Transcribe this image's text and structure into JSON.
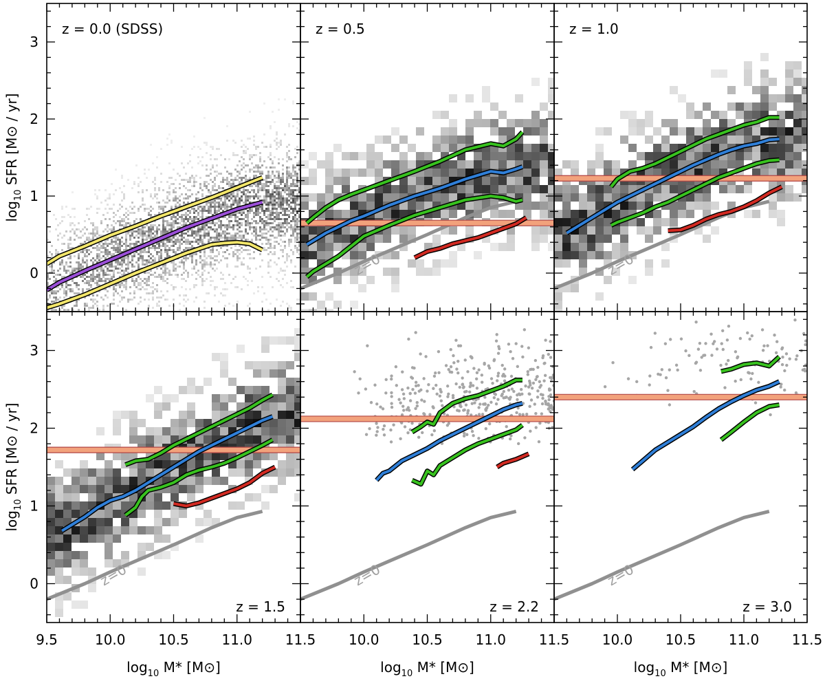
{
  "chart_data": {
    "type": "line",
    "layout": "2x3 grid, shared axes",
    "xlabel": "log10 M* [M⊙]",
    "ylabel": "log10 SFR [M⊙ / yr]",
    "xlim": [
      9.5,
      11.5
    ],
    "ylim": [
      -0.5,
      3.5
    ],
    "x_ticks": [
      9.5,
      10.0,
      10.5,
      11.0,
      11.5
    ],
    "x_tick_labels": [
      "9.5",
      "10.0",
      "10.5",
      "11.0",
      "11.5"
    ],
    "y_ticks": [
      0,
      1,
      2,
      3
    ],
    "y_tick_labels": [
      "0",
      "1",
      "2",
      "3"
    ],
    "z0_reference": {
      "label": "z=0",
      "x": [
        9.5,
        9.8,
        10.0,
        10.2,
        10.5,
        10.8,
        11.0,
        11.2
      ],
      "y": [
        -0.2,
        0.0,
        0.15,
        0.29,
        0.5,
        0.72,
        0.85,
        0.93
      ]
    },
    "panels": [
      {
        "label": "z = 0.0 (SDSS)",
        "label_position": "top-left",
        "background": "pixel density (dense)",
        "threshold": null,
        "series": [
          {
            "name": "upper",
            "color": "#f2e66b",
            "x": [
              9.5,
              9.6,
              9.8,
              10.0,
              10.2,
              10.4,
              10.6,
              10.8,
              11.0,
              11.2
            ],
            "y": [
              0.12,
              0.22,
              0.35,
              0.49,
              0.61,
              0.74,
              0.86,
              0.98,
              1.11,
              1.24
            ]
          },
          {
            "name": "median",
            "color": "#9b4fd8",
            "x": [
              9.5,
              9.6,
              9.8,
              10.0,
              10.2,
              10.4,
              10.6,
              10.8,
              11.0,
              11.2
            ],
            "y": [
              -0.22,
              -0.12,
              0.03,
              0.17,
              0.31,
              0.45,
              0.59,
              0.71,
              0.83,
              0.92
            ]
          },
          {
            "name": "lower",
            "color": "#f2e66b",
            "x": [
              9.5,
              9.6,
              9.8,
              10.0,
              10.2,
              10.4,
              10.6,
              10.8,
              10.9,
              11.0,
              11.1,
              11.2
            ],
            "y": [
              -0.45,
              -0.4,
              -0.28,
              -0.14,
              0.0,
              0.13,
              0.26,
              0.37,
              0.39,
              0.4,
              0.38,
              0.3
            ]
          }
        ]
      },
      {
        "label": "z = 0.5",
        "label_position": "top-left",
        "background": "density histogram",
        "threshold": 0.65,
        "series": [
          {
            "name": "upper",
            "color": "#38c21f",
            "x": [
              9.55,
              9.6,
              9.7,
              9.8,
              9.9,
              10.0,
              10.2,
              10.4,
              10.6,
              10.8,
              11.0,
              11.1,
              11.2,
              11.25
            ],
            "y": [
              0.65,
              0.72,
              0.85,
              0.95,
              1.02,
              1.08,
              1.2,
              1.32,
              1.45,
              1.6,
              1.68,
              1.65,
              1.74,
              1.83
            ]
          },
          {
            "name": "median",
            "color": "#2f7fd8",
            "x": [
              9.55,
              9.6,
              9.7,
              9.8,
              9.9,
              10.0,
              10.2,
              10.4,
              10.6,
              10.8,
              11.0,
              11.1,
              11.2,
              11.25
            ],
            "y": [
              0.37,
              0.42,
              0.52,
              0.6,
              0.68,
              0.74,
              0.88,
              1.0,
              1.1,
              1.22,
              1.32,
              1.3,
              1.35,
              1.38
            ]
          },
          {
            "name": "lower",
            "color": "#38c21f",
            "x": [
              9.55,
              9.6,
              9.7,
              9.8,
              9.9,
              10.0,
              10.2,
              10.4,
              10.6,
              10.8,
              11.0,
              11.1,
              11.2,
              11.25
            ],
            "y": [
              -0.05,
              0.02,
              0.12,
              0.22,
              0.35,
              0.48,
              0.62,
              0.75,
              0.85,
              0.95,
              1.0,
              0.98,
              0.93,
              0.95
            ]
          },
          {
            "name": "quiescent",
            "color": "#d22a22",
            "x": [
              10.4,
              10.5,
              10.6,
              10.7,
              10.8,
              10.9,
              11.0,
              11.1,
              11.2,
              11.28
            ],
            "y": [
              0.2,
              0.28,
              0.32,
              0.38,
              0.42,
              0.46,
              0.52,
              0.58,
              0.64,
              0.72
            ]
          }
        ]
      },
      {
        "label": "z = 1.0",
        "label_position": "top-left",
        "background": "density histogram",
        "threshold": 1.23,
        "series": [
          {
            "name": "upper",
            "color": "#38c21f",
            "x": [
              9.95,
              10.0,
              10.1,
              10.2,
              10.3,
              10.4,
              10.5,
              10.6,
              10.7,
              10.8,
              10.9,
              11.0,
              11.1,
              11.2,
              11.28
            ],
            "y": [
              1.12,
              1.22,
              1.32,
              1.36,
              1.42,
              1.5,
              1.58,
              1.66,
              1.74,
              1.8,
              1.86,
              1.92,
              1.96,
              2.02,
              2.02
            ]
          },
          {
            "name": "median",
            "color": "#2f7fd8",
            "x": [
              9.6,
              9.7,
              9.8,
              9.9,
              10.0,
              10.1,
              10.2,
              10.3,
              10.4,
              10.5,
              10.6,
              10.7,
              10.8,
              10.9,
              11.0,
              11.1,
              11.2,
              11.28
            ],
            "y": [
              0.52,
              0.62,
              0.72,
              0.82,
              0.92,
              1.0,
              1.08,
              1.16,
              1.24,
              1.32,
              1.4,
              1.47,
              1.54,
              1.6,
              1.65,
              1.68,
              1.73,
              1.74
            ]
          },
          {
            "name": "lower",
            "color": "#38c21f",
            "x": [
              9.95,
              10.0,
              10.1,
              10.2,
              10.3,
              10.4,
              10.5,
              10.6,
              10.7,
              10.8,
              10.9,
              11.0,
              11.1,
              11.2,
              11.28
            ],
            "y": [
              0.62,
              0.66,
              0.72,
              0.78,
              0.86,
              0.92,
              1.0,
              1.08,
              1.16,
              1.24,
              1.3,
              1.36,
              1.42,
              1.46,
              1.47
            ]
          },
          {
            "name": "quiescent",
            "color": "#d22a22",
            "x": [
              10.4,
              10.5,
              10.6,
              10.7,
              10.8,
              10.9,
              11.0,
              11.1,
              11.2,
              11.3
            ],
            "y": [
              0.55,
              0.56,
              0.62,
              0.7,
              0.76,
              0.8,
              0.86,
              0.94,
              1.04,
              1.12
            ]
          }
        ]
      },
      {
        "label": "z = 1.5",
        "label_position": "bottom-right",
        "background": "density histogram",
        "threshold": 1.72,
        "series": [
          {
            "name": "upper",
            "color": "#38c21f",
            "x": [
              10.12,
              10.2,
              10.3,
              10.4,
              10.5,
              10.6,
              10.7,
              10.8,
              10.9,
              11.0,
              11.1,
              11.2,
              11.28
            ],
            "y": [
              1.53,
              1.58,
              1.6,
              1.68,
              1.78,
              1.86,
              1.94,
              2.02,
              2.1,
              2.18,
              2.26,
              2.36,
              2.43
            ]
          },
          {
            "name": "median",
            "color": "#2f7fd8",
            "x": [
              9.62,
              9.7,
              9.8,
              9.9,
              10.0,
              10.1,
              10.2,
              10.3,
              10.4,
              10.5,
              10.6,
              10.7,
              10.8,
              10.9,
              11.0,
              11.1,
              11.2,
              11.28
            ],
            "y": [
              0.68,
              0.76,
              0.86,
              0.98,
              1.07,
              1.12,
              1.2,
              1.3,
              1.4,
              1.5,
              1.6,
              1.7,
              1.78,
              1.86,
              1.94,
              2.02,
              2.1,
              2.15
            ]
          },
          {
            "name": "lower",
            "color": "#38c21f",
            "x": [
              10.12,
              10.2,
              10.25,
              10.3,
              10.4,
              10.5,
              10.6,
              10.7,
              10.8,
              10.9,
              11.0,
              11.1,
              11.2,
              11.28
            ],
            "y": [
              0.88,
              0.98,
              1.12,
              1.2,
              1.24,
              1.3,
              1.4,
              1.46,
              1.5,
              1.55,
              1.62,
              1.7,
              1.78,
              1.85
            ]
          },
          {
            "name": "quiescent",
            "color": "#d22a22",
            "x": [
              10.5,
              10.6,
              10.7,
              10.8,
              10.9,
              11.0,
              11.1,
              11.2,
              11.3
            ],
            "y": [
              1.03,
              1.0,
              1.04,
              1.1,
              1.16,
              1.22,
              1.3,
              1.42,
              1.5
            ]
          }
        ]
      },
      {
        "label": "z = 2.2",
        "label_position": "bottom-right",
        "background": "scatter points",
        "threshold": 2.12,
        "series": [
          {
            "name": "upper",
            "color": "#38c21f",
            "x": [
              10.38,
              10.45,
              10.5,
              10.55,
              10.6,
              10.7,
              10.8,
              10.9,
              11.0,
              11.1,
              11.2,
              11.25
            ],
            "y": [
              1.95,
              2.02,
              2.08,
              2.05,
              2.2,
              2.32,
              2.38,
              2.42,
              2.48,
              2.54,
              2.62,
              2.62
            ]
          },
          {
            "name": "median",
            "color": "#2f7fd8",
            "x": [
              10.1,
              10.15,
              10.2,
              10.3,
              10.4,
              10.5,
              10.6,
              10.7,
              10.8,
              10.9,
              11.0,
              11.1,
              11.2,
              11.25
            ],
            "y": [
              1.33,
              1.42,
              1.45,
              1.58,
              1.66,
              1.74,
              1.84,
              1.92,
              2.0,
              2.08,
              2.16,
              2.24,
              2.3,
              2.32
            ]
          },
          {
            "name": "lower",
            "color": "#38c21f",
            "x": [
              10.38,
              10.45,
              10.5,
              10.55,
              10.6,
              10.7,
              10.8,
              10.9,
              11.0,
              11.1,
              11.2,
              11.25
            ],
            "y": [
              1.33,
              1.28,
              1.45,
              1.4,
              1.52,
              1.62,
              1.72,
              1.8,
              1.86,
              1.92,
              1.98,
              2.04
            ]
          },
          {
            "name": "quiescent",
            "color": "#d22a22",
            "x": [
              11.05,
              11.1,
              11.2,
              11.3
            ],
            "y": [
              1.5,
              1.55,
              1.6,
              1.67
            ]
          }
        ]
      },
      {
        "label": "z = 3.0",
        "label_position": "bottom-right",
        "background": "scatter points",
        "threshold": 2.4,
        "series": [
          {
            "name": "upper",
            "color": "#38c21f",
            "x": [
              10.82,
              10.9,
              11.0,
              11.1,
              11.2,
              11.28
            ],
            "y": [
              2.73,
              2.76,
              2.82,
              2.84,
              2.8,
              2.92
            ]
          },
          {
            "name": "median",
            "color": "#2f7fd8",
            "x": [
              10.12,
              10.2,
              10.3,
              10.4,
              10.5,
              10.6,
              10.7,
              10.8,
              10.9,
              11.0,
              11.1,
              11.2,
              11.28
            ],
            "y": [
              1.47,
              1.58,
              1.72,
              1.82,
              1.92,
              2.02,
              2.14,
              2.25,
              2.34,
              2.42,
              2.49,
              2.54,
              2.6
            ]
          },
          {
            "name": "lower",
            "color": "#38c21f",
            "x": [
              10.82,
              10.9,
              11.0,
              11.1,
              11.2,
              11.28
            ],
            "y": [
              1.85,
              1.95,
              2.08,
              2.2,
              2.28,
              2.3
            ]
          }
        ]
      }
    ]
  }
}
